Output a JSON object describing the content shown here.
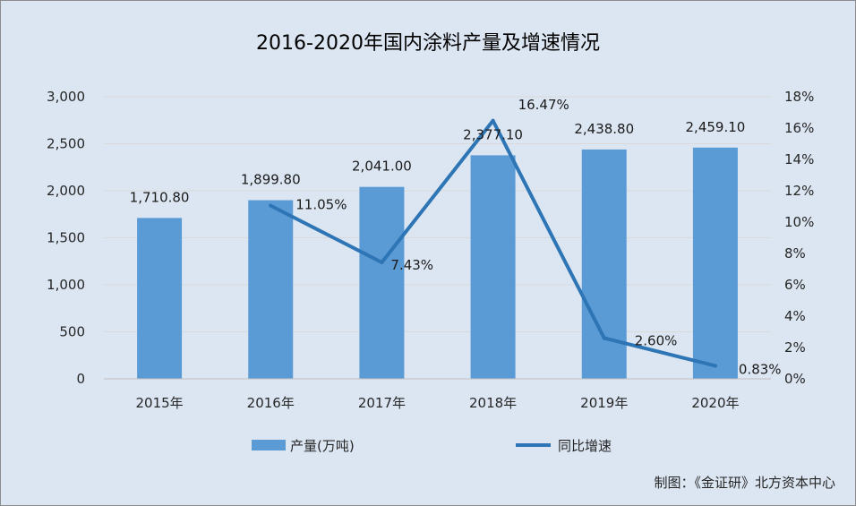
{
  "chart_data": {
    "type": "bar",
    "title": "2016-2020年国内涂料产量及增速情况",
    "categories": [
      "2015年",
      "2016年",
      "2017年",
      "2018年",
      "2019年",
      "2020年"
    ],
    "series": [
      {
        "name": "产量(万吨)",
        "type": "bar",
        "axis": "left",
        "values": [
          1710.8,
          1899.8,
          2041.0,
          2377.1,
          2438.8,
          2459.1
        ],
        "labels": [
          "1,710.80",
          "1,899.80",
          "2,041.00",
          "2,377.10",
          "2,438.80",
          "2,459.10"
        ],
        "color": "#5b9bd5"
      },
      {
        "name": "同比增速",
        "type": "line",
        "axis": "right",
        "values": [
          null,
          11.05,
          7.43,
          16.47,
          2.6,
          0.83
        ],
        "labels": [
          null,
          "11.05%",
          "7.43%",
          "16.47%",
          "2.60%",
          "0.83%"
        ],
        "color": "#2e75b6"
      }
    ],
    "y_left": {
      "ylim": [
        0,
        3000
      ],
      "ticks": [
        0,
        500,
        1000,
        1500,
        2000,
        2500,
        3000
      ],
      "tick_labels": [
        "0",
        "500",
        "1,000",
        "1,500",
        "2,000",
        "2,500",
        "3,000"
      ]
    },
    "y_right": {
      "ylim": [
        0,
        18
      ],
      "ticks": [
        0,
        2,
        4,
        6,
        8,
        10,
        12,
        14,
        16,
        18
      ],
      "tick_labels": [
        "0%",
        "2%",
        "4%",
        "6%",
        "8%",
        "10%",
        "12%",
        "14%",
        "16%",
        "18%"
      ]
    },
    "grid": true,
    "legend_position": "bottom",
    "source": "制图：《金证研》北方资本中心",
    "colors": {
      "background": "#dce6f2",
      "gridline": "#d9d9d9",
      "bar": "#5b9bd5",
      "line": "#2e75b6"
    }
  }
}
